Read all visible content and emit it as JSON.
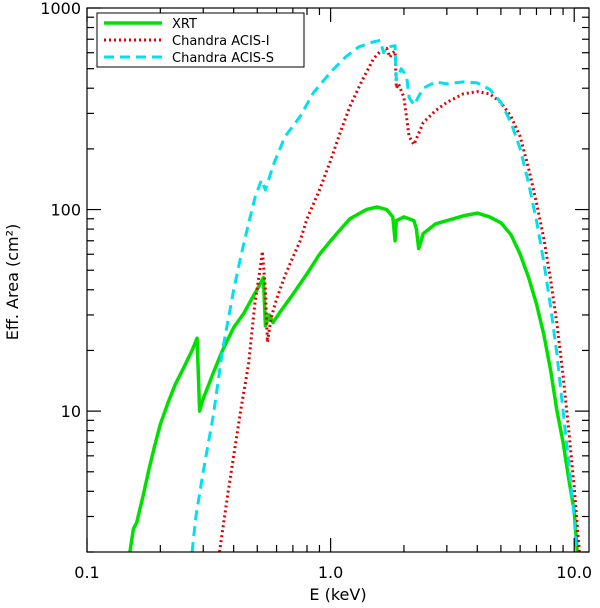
{
  "chart_data": {
    "type": "line",
    "title": "",
    "xlabel": "E (keV)",
    "ylabel": "Eff. Area (cm²)",
    "xscale": "log",
    "yscale": "log",
    "xlim": [
      0.1,
      11.5
    ],
    "ylim": [
      2,
      1000
    ],
    "x_ticks": [
      {
        "value": 0.1,
        "label": "0.1"
      },
      {
        "value": 1.0,
        "label": "1.0"
      },
      {
        "value": 10.0,
        "label": "10.0"
      }
    ],
    "y_ticks": [
      {
        "value": 10,
        "label": "10"
      },
      {
        "value": 100,
        "label": "100"
      },
      {
        "value": 1000,
        "label": "1000"
      }
    ],
    "grid": false,
    "legend_position": "top-left",
    "series": [
      {
        "name": "XRT",
        "color": "#00e000",
        "style": "solid",
        "points": [
          [
            0.15,
            2.0
          ],
          [
            0.155,
            2.6
          ],
          [
            0.16,
            2.8
          ],
          [
            0.17,
            3.8
          ],
          [
            0.18,
            5.2
          ],
          [
            0.19,
            6.8
          ],
          [
            0.2,
            8.6
          ],
          [
            0.215,
            11.0
          ],
          [
            0.23,
            13.5
          ],
          [
            0.25,
            16.5
          ],
          [
            0.27,
            20.0
          ],
          [
            0.283,
            23.0
          ],
          [
            0.29,
            10.0
          ],
          [
            0.3,
            11.5
          ],
          [
            0.33,
            15.5
          ],
          [
            0.36,
            20.0
          ],
          [
            0.4,
            26.0
          ],
          [
            0.44,
            30.5
          ],
          [
            0.48,
            37.0
          ],
          [
            0.51,
            42.0
          ],
          [
            0.53,
            46.0
          ],
          [
            0.54,
            26.5
          ],
          [
            0.56,
            30.0
          ],
          [
            0.58,
            27.5
          ],
          [
            0.62,
            31.0
          ],
          [
            0.7,
            38.0
          ],
          [
            0.8,
            48.0
          ],
          [
            0.9,
            60.0
          ],
          [
            1.0,
            70.0
          ],
          [
            1.1,
            80.0
          ],
          [
            1.2,
            90.0
          ],
          [
            1.4,
            100.0
          ],
          [
            1.55,
            103.0
          ],
          [
            1.7,
            100.0
          ],
          [
            1.8,
            92.0
          ],
          [
            1.84,
            70.0
          ],
          [
            1.86,
            88.0
          ],
          [
            2.0,
            92.0
          ],
          [
            2.2,
            88.0
          ],
          [
            2.25,
            80.0
          ],
          [
            2.3,
            64.0
          ],
          [
            2.4,
            76.0
          ],
          [
            2.7,
            85.0
          ],
          [
            3.0,
            88.0
          ],
          [
            3.5,
            93.0
          ],
          [
            4.0,
            96.0
          ],
          [
            4.5,
            92.0
          ],
          [
            5.0,
            86.0
          ],
          [
            5.5,
            75.0
          ],
          [
            6.0,
            60.0
          ],
          [
            6.5,
            46.0
          ],
          [
            7.0,
            34.0
          ],
          [
            7.5,
            24.0
          ],
          [
            8.0,
            16.0
          ],
          [
            8.5,
            10.0
          ],
          [
            9.0,
            7.0
          ],
          [
            9.5,
            4.6
          ],
          [
            10.0,
            3.2
          ],
          [
            10.3,
            2.0
          ]
        ]
      },
      {
        "name": "Chandra ACIS-I",
        "color": "#e00000",
        "style": "dotted",
        "points": [
          [
            0.35,
            2.0
          ],
          [
            0.38,
            4.0
          ],
          [
            0.4,
            6.0
          ],
          [
            0.43,
            10.5
          ],
          [
            0.46,
            17.0
          ],
          [
            0.49,
            35.0
          ],
          [
            0.51,
            48.0
          ],
          [
            0.525,
            62.0
          ],
          [
            0.54,
            40.0
          ],
          [
            0.55,
            22.0
          ],
          [
            0.57,
            29.0
          ],
          [
            0.6,
            36.0
          ],
          [
            0.65,
            47.0
          ],
          [
            0.7,
            58.0
          ],
          [
            0.75,
            70.0
          ],
          [
            0.8,
            90.0
          ],
          [
            0.9,
            125.0
          ],
          [
            1.0,
            175.0
          ],
          [
            1.1,
            245.0
          ],
          [
            1.2,
            325.0
          ],
          [
            1.35,
            440.0
          ],
          [
            1.5,
            560.0
          ],
          [
            1.6,
            610.0
          ],
          [
            1.7,
            630.0
          ],
          [
            1.75,
            570.0
          ],
          [
            1.8,
            600.0
          ],
          [
            1.84,
            610.0
          ],
          [
            1.86,
            400.0
          ],
          [
            1.9,
            420.0
          ],
          [
            2.0,
            360.0
          ],
          [
            2.1,
            230.0
          ],
          [
            2.2,
            210.0
          ],
          [
            2.4,
            270.0
          ],
          [
            2.7,
            310.0
          ],
          [
            3.0,
            340.0
          ],
          [
            3.5,
            375.0
          ],
          [
            4.0,
            385.0
          ],
          [
            4.5,
            375.0
          ],
          [
            5.0,
            340.0
          ],
          [
            5.5,
            290.0
          ],
          [
            6.0,
            230.0
          ],
          [
            6.5,
            160.0
          ],
          [
            7.0,
            108.0
          ],
          [
            7.5,
            72.0
          ],
          [
            8.0,
            45.0
          ],
          [
            8.5,
            27.0
          ],
          [
            9.0,
            15.0
          ],
          [
            9.5,
            8.0
          ],
          [
            10.0,
            4.2
          ],
          [
            10.5,
            2.0
          ]
        ]
      },
      {
        "name": "Chandra ACIS-S",
        "color": "#00e0f0",
        "style": "dashed",
        "points": [
          [
            0.27,
            2.0
          ],
          [
            0.28,
            3.0
          ],
          [
            0.3,
            5.0
          ],
          [
            0.33,
            9.5
          ],
          [
            0.36,
            20.0
          ],
          [
            0.4,
            40.0
          ],
          [
            0.43,
            60.0
          ],
          [
            0.46,
            85.0
          ],
          [
            0.49,
            115.0
          ],
          [
            0.52,
            140.0
          ],
          [
            0.54,
            125.0
          ],
          [
            0.58,
            165.0
          ],
          [
            0.65,
            230.0
          ],
          [
            0.75,
            290.0
          ],
          [
            0.85,
            380.0
          ],
          [
            1.0,
            480.0
          ],
          [
            1.15,
            570.0
          ],
          [
            1.3,
            640.0
          ],
          [
            1.5,
            680.0
          ],
          [
            1.6,
            690.0
          ],
          [
            1.65,
            600.0
          ],
          [
            1.7,
            640.0
          ],
          [
            1.84,
            650.0
          ],
          [
            1.86,
            440.0
          ],
          [
            1.95,
            500.0
          ],
          [
            2.05,
            460.0
          ],
          [
            2.1,
            360.0
          ],
          [
            2.2,
            330.0
          ],
          [
            2.4,
            400.0
          ],
          [
            2.7,
            430.0
          ],
          [
            3.0,
            420.0
          ],
          [
            3.5,
            430.0
          ],
          [
            4.0,
            425.0
          ],
          [
            4.5,
            395.0
          ],
          [
            5.0,
            340.0
          ],
          [
            5.5,
            270.0
          ],
          [
            6.0,
            200.0
          ],
          [
            6.5,
            135.0
          ],
          [
            7.0,
            88.0
          ],
          [
            7.5,
            55.0
          ],
          [
            8.0,
            33.0
          ],
          [
            8.5,
            19.0
          ],
          [
            9.0,
            10.0
          ],
          [
            9.5,
            5.5
          ],
          [
            10.0,
            3.0
          ],
          [
            10.2,
            2.0
          ]
        ]
      }
    ]
  }
}
